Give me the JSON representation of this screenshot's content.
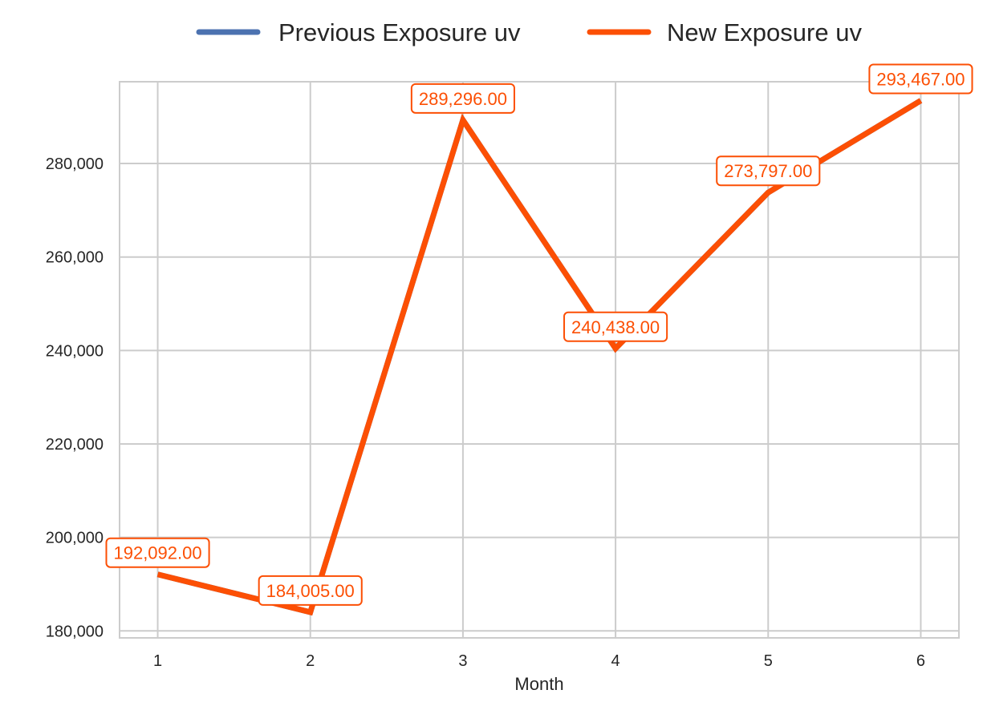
{
  "chart_data": {
    "type": "line",
    "title": "",
    "xlabel": "Month",
    "ylabel": "",
    "x": [
      1,
      2,
      3,
      4,
      5,
      6
    ],
    "x_tick_labels": [
      "1",
      "2",
      "3",
      "4",
      "5",
      "6"
    ],
    "xlim": [
      0.75,
      6.25
    ],
    "ylim": [
      178500,
      297500
    ],
    "y_ticks": [
      180000,
      200000,
      220000,
      240000,
      260000,
      280000
    ],
    "y_tick_labels": [
      "180,000",
      "200,000",
      "220,000",
      "240,000",
      "260,000",
      "280,000"
    ],
    "grid": true,
    "legend_position": "top-center",
    "series": [
      {
        "name": "Previous Exposure uv",
        "color": "#4c72b0",
        "values": [
          192092,
          184005,
          289296,
          240438,
          273797,
          293467
        ]
      },
      {
        "name": "New Exposure uv",
        "color": "#fc4f04",
        "values": [
          192092,
          184005,
          289296,
          240438,
          273797,
          293467
        ],
        "data_labels": [
          "192,092.00",
          "184,005.00",
          "289,296.00",
          "240,438.00",
          "273,797.00",
          "293,467.00"
        ]
      }
    ]
  }
}
